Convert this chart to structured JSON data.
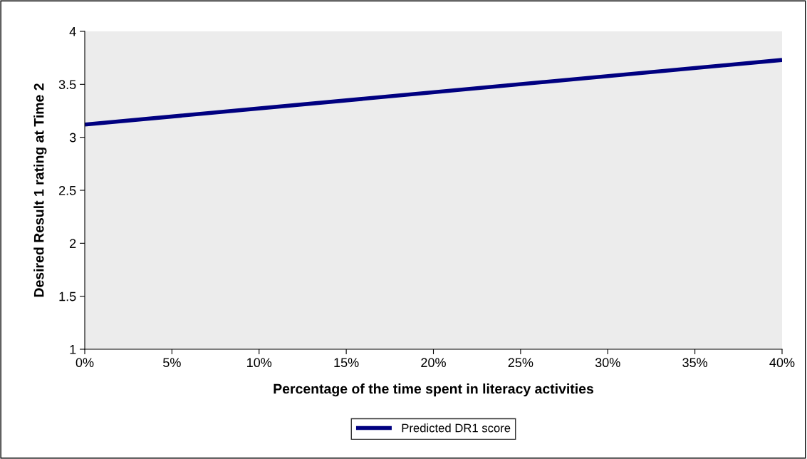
{
  "chart_data": {
    "type": "line",
    "xlabel": "Percentage of the time spent in literacy activities",
    "ylabel": "Desired Result 1 rating at Time 2",
    "x": [
      0,
      40
    ],
    "series": [
      {
        "name": "Predicted DR1 score",
        "color": "#000080",
        "values": [
          3.12,
          3.73
        ]
      }
    ],
    "xlim": [
      0,
      40
    ],
    "xticks": [
      {
        "value": 0,
        "label": "0%"
      },
      {
        "value": 5,
        "label": "5%"
      },
      {
        "value": 10,
        "label": "10%"
      },
      {
        "value": 15,
        "label": "15%"
      },
      {
        "value": 20,
        "label": "20%"
      },
      {
        "value": 25,
        "label": "25%"
      },
      {
        "value": 30,
        "label": "30%"
      },
      {
        "value": 35,
        "label": "35%"
      },
      {
        "value": 40,
        "label": "40%"
      }
    ],
    "ylim": [
      1,
      4
    ],
    "yticks": [
      1,
      1.5,
      2,
      2.5,
      3,
      3.5,
      4
    ],
    "grid": false,
    "legend": "bottom",
    "marker": "none",
    "line_style": "solid"
  }
}
